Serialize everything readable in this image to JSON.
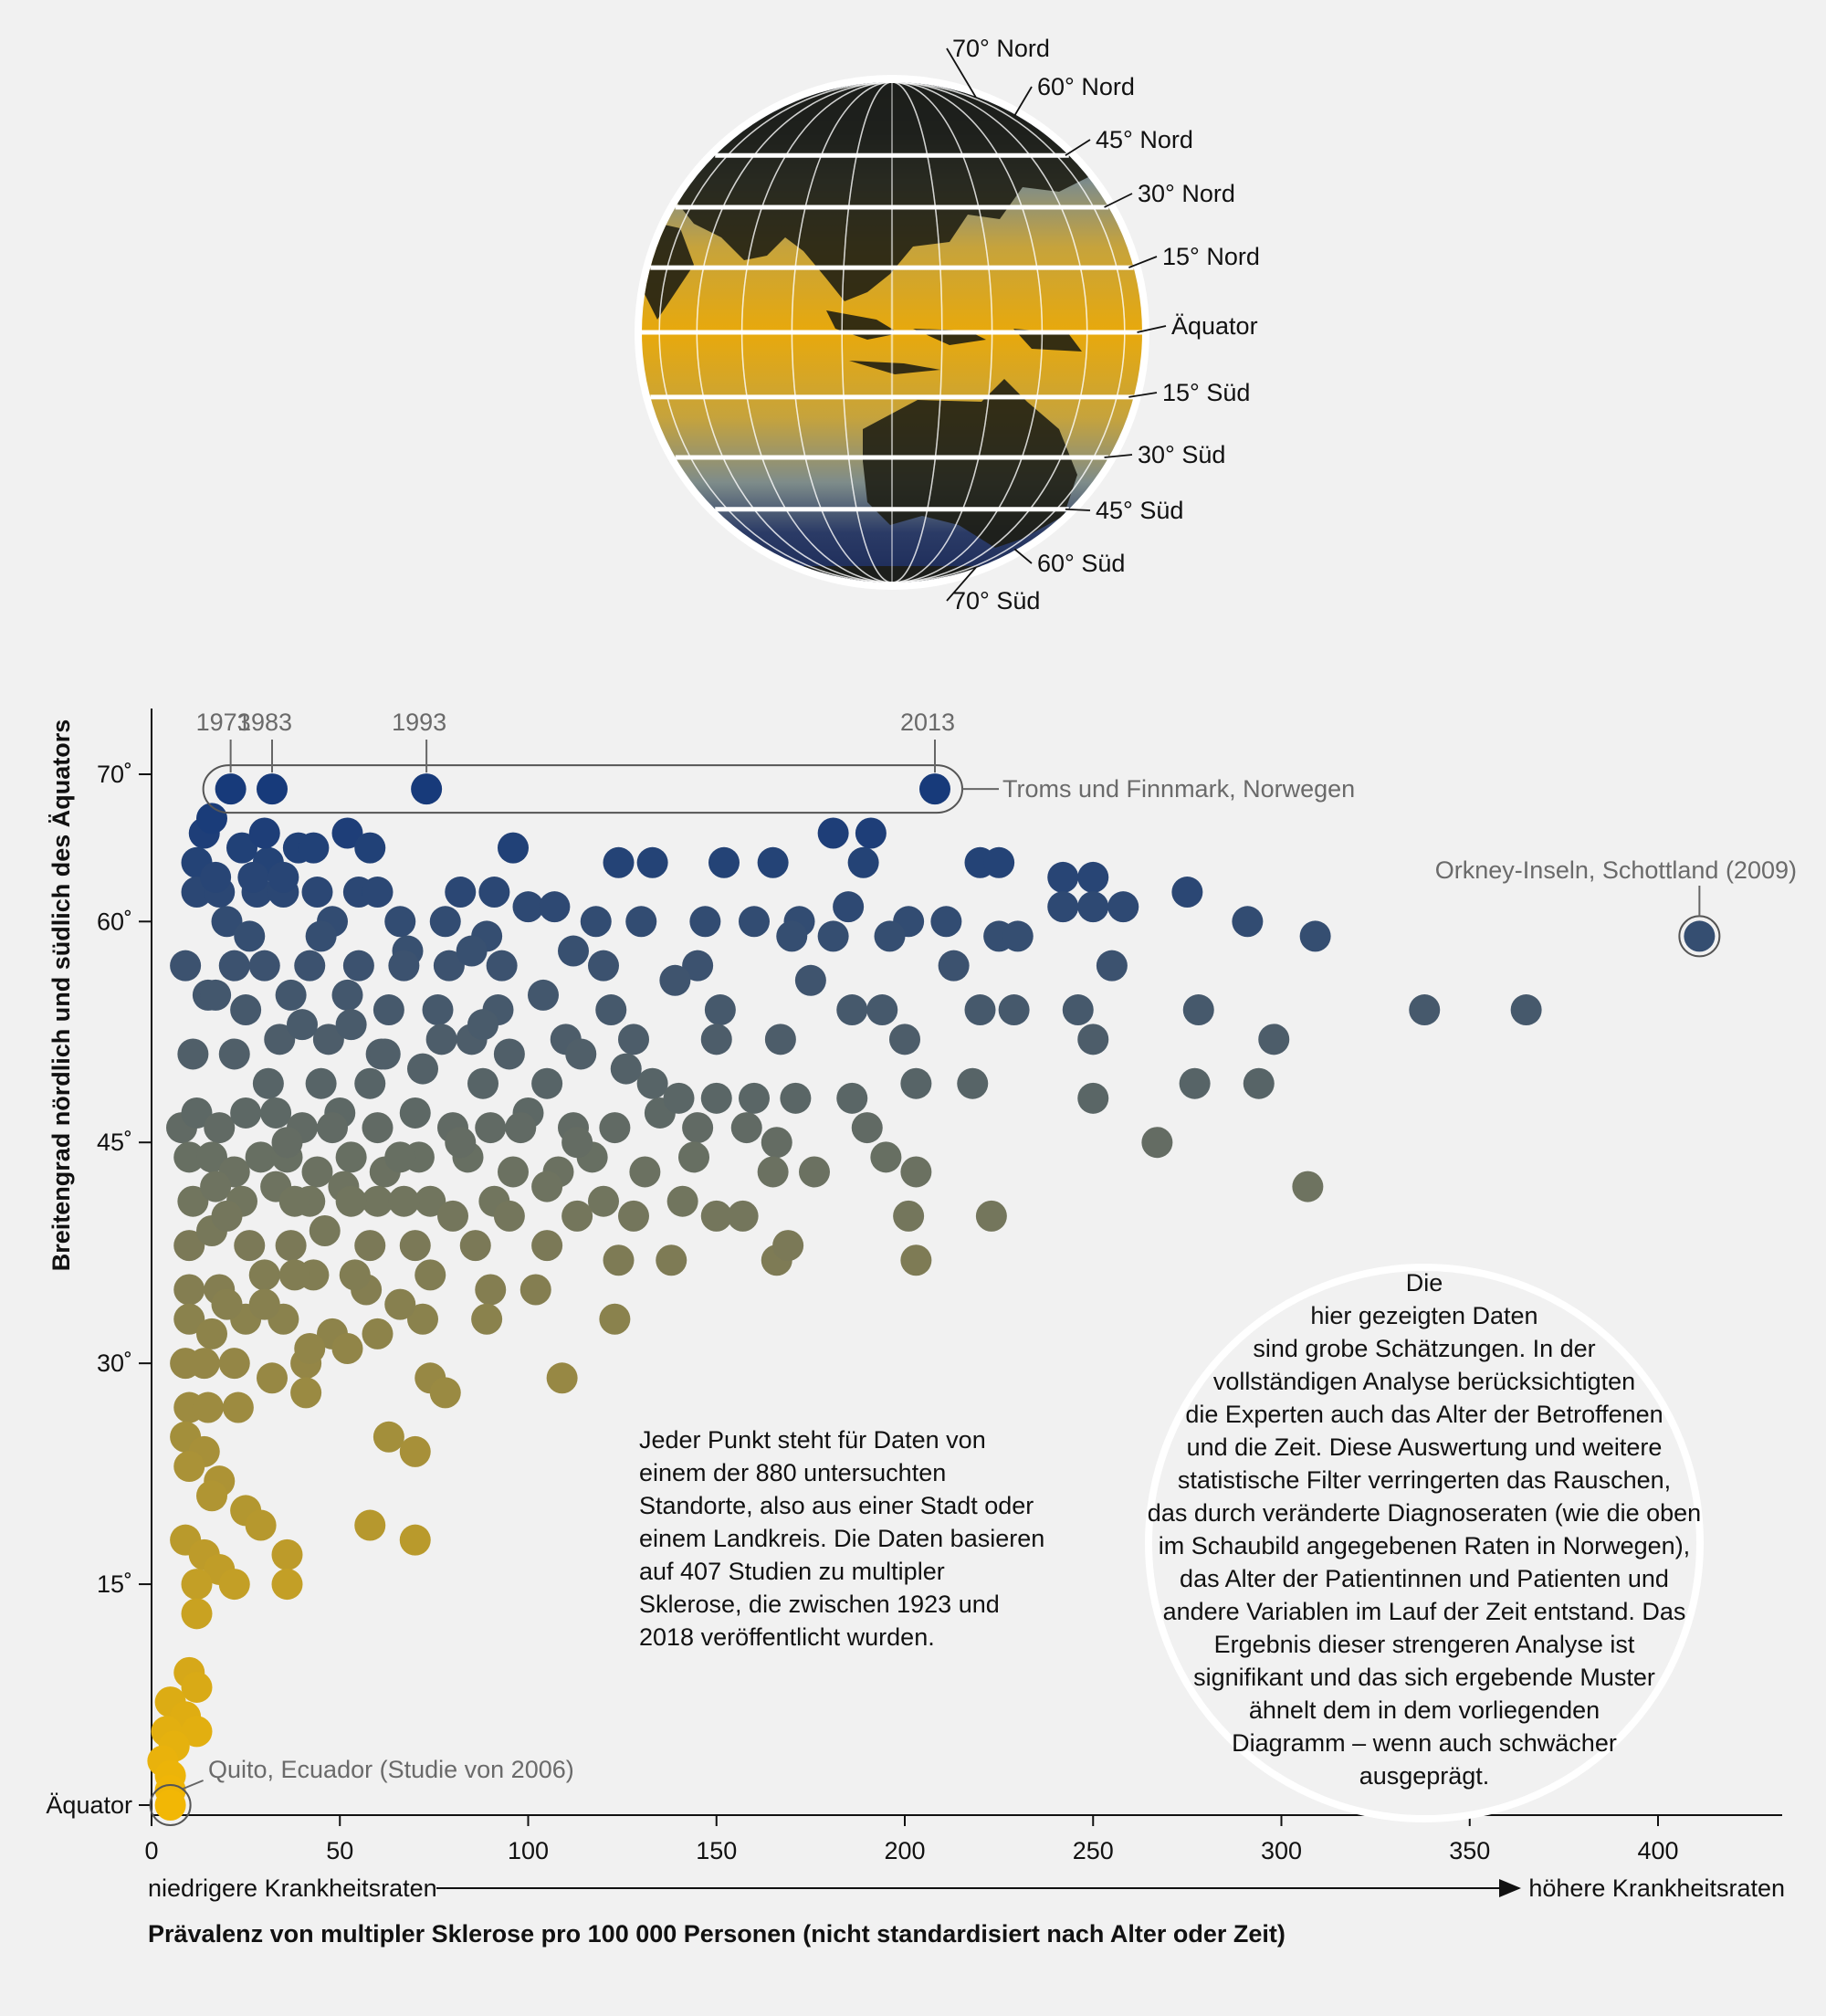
{
  "globe": {
    "labels": [
      "70° Nord",
      "60° Nord",
      "45° Nord",
      "30° Nord",
      "15° Nord",
      "Äquator",
      "15° Süd",
      "30° Süd",
      "45° Süd",
      "60° Süd",
      "70° Süd"
    ],
    "colors": {
      "pole": "#1f2d5c",
      "mid": "#7c8a86",
      "equator": "#e7a90f"
    }
  },
  "chart_data": {
    "type": "scatter",
    "title": "",
    "xlabel": "Prävalenz von multipler Sklerose pro 100 000 Personen (nicht standardisiert nach Alter oder Zeit)",
    "ylabel": "Breitengrad nördlich und südlich des Äquators",
    "x_ticks": [
      "0",
      "50",
      "100",
      "150",
      "200",
      "250",
      "300",
      "350",
      "400"
    ],
    "y_ticks": [
      "Äquator",
      "15˚",
      "30˚",
      "45˚",
      "60˚",
      "70˚"
    ],
    "xlim": [
      0,
      430
    ],
    "ylim": [
      0,
      73
    ],
    "x_arrow_left": "niedrigere Krankheitsraten",
    "x_arrow_right": "höhere Krankheitsraten",
    "color_scale": {
      "low_lat": "#f2b705",
      "mid_lat": "#6e7360",
      "high_lat": "#173a7a"
    },
    "highlight_years": [
      "1973",
      "1983",
      "1993",
      "2013"
    ],
    "annotations": {
      "troms": "Troms und Finnmark, Norwegen",
      "orkney": "Orkney-Inseln, Schottland (2009)",
      "quito": "Quito, Ecuador (Studie von 2006)"
    },
    "highlight_points": [
      {
        "x": 21,
        "y": 69,
        "label": "1973"
      },
      {
        "x": 32,
        "y": 69,
        "label": "1983"
      },
      {
        "x": 73,
        "y": 69,
        "label": "1993"
      },
      {
        "x": 208,
        "y": 69,
        "label": "2013"
      },
      {
        "x": 411,
        "y": 59,
        "label": "orkney"
      },
      {
        "x": 5,
        "y": 0,
        "label": "quito"
      }
    ],
    "points": [
      [
        14,
        66
      ],
      [
        16,
        67
      ],
      [
        12,
        64
      ],
      [
        24,
        65
      ],
      [
        31,
        64
      ],
      [
        39,
        65
      ],
      [
        43,
        65
      ],
      [
        52,
        66
      ],
      [
        58,
        65
      ],
      [
        96,
        65
      ],
      [
        124,
        64
      ],
      [
        133,
        64
      ],
      [
        152,
        64
      ],
      [
        165,
        64
      ],
      [
        181,
        66
      ],
      [
        191,
        66
      ],
      [
        189,
        64
      ],
      [
        220,
        64
      ],
      [
        225,
        64
      ],
      [
        242,
        63
      ],
      [
        250,
        63
      ],
      [
        275,
        62
      ],
      [
        12,
        62
      ],
      [
        18,
        62
      ],
      [
        28,
        62
      ],
      [
        35,
        62
      ],
      [
        55,
        62
      ],
      [
        60,
        62
      ],
      [
        82,
        62
      ],
      [
        91,
        62
      ],
      [
        100,
        61
      ],
      [
        107,
        61
      ],
      [
        160,
        60
      ],
      [
        172,
        60
      ],
      [
        185,
        61
      ],
      [
        201,
        60
      ],
      [
        211,
        60
      ],
      [
        225,
        59
      ],
      [
        230,
        59
      ],
      [
        242,
        61
      ],
      [
        250,
        61
      ],
      [
        258,
        61
      ],
      [
        291,
        60
      ],
      [
        309,
        59
      ],
      [
        20,
        60
      ],
      [
        26,
        59
      ],
      [
        48,
        60
      ],
      [
        66,
        60
      ],
      [
        78,
        60
      ],
      [
        89,
        59
      ],
      [
        118,
        60
      ],
      [
        130,
        60
      ],
      [
        147,
        60
      ],
      [
        170,
        59
      ],
      [
        196,
        59
      ],
      [
        9,
        57
      ],
      [
        15,
        55
      ],
      [
        22,
        57
      ],
      [
        30,
        57
      ],
      [
        42,
        57
      ],
      [
        55,
        57
      ],
      [
        68,
        58
      ],
      [
        79,
        57
      ],
      [
        93,
        57
      ],
      [
        120,
        57
      ],
      [
        145,
        57
      ],
      [
        213,
        57
      ],
      [
        255,
        57
      ],
      [
        17,
        55
      ],
      [
        25,
        54
      ],
      [
        37,
        55
      ],
      [
        52,
        55
      ],
      [
        63,
        54
      ],
      [
        76,
        54
      ],
      [
        92,
        54
      ],
      [
        122,
        54
      ],
      [
        151,
        54
      ],
      [
        186,
        54
      ],
      [
        194,
        54
      ],
      [
        220,
        54
      ],
      [
        229,
        54
      ],
      [
        246,
        54
      ],
      [
        278,
        54
      ],
      [
        338,
        54
      ],
      [
        365,
        54
      ],
      [
        11,
        51
      ],
      [
        22,
        51
      ],
      [
        34,
        52
      ],
      [
        47,
        52
      ],
      [
        61,
        51
      ],
      [
        85,
        52
      ],
      [
        110,
        52
      ],
      [
        128,
        52
      ],
      [
        150,
        52
      ],
      [
        167,
        52
      ],
      [
        200,
        52
      ],
      [
        250,
        52
      ],
      [
        298,
        52
      ],
      [
        31,
        49
      ],
      [
        45,
        49
      ],
      [
        58,
        49
      ],
      [
        72,
        50
      ],
      [
        88,
        49
      ],
      [
        105,
        49
      ],
      [
        133,
        49
      ],
      [
        150,
        48
      ],
      [
        160,
        48
      ],
      [
        171,
        48
      ],
      [
        186,
        48
      ],
      [
        203,
        49
      ],
      [
        218,
        49
      ],
      [
        250,
        48
      ],
      [
        277,
        49
      ],
      [
        294,
        49
      ],
      [
        8,
        46
      ],
      [
        12,
        47
      ],
      [
        18,
        46
      ],
      [
        25,
        47
      ],
      [
        33,
        47
      ],
      [
        40,
        46
      ],
      [
        50,
        47
      ],
      [
        60,
        46
      ],
      [
        70,
        47
      ],
      [
        80,
        46
      ],
      [
        90,
        46
      ],
      [
        100,
        47
      ],
      [
        112,
        46
      ],
      [
        123,
        46
      ],
      [
        135,
        47
      ],
      [
        145,
        46
      ],
      [
        166,
        45
      ],
      [
        190,
        46
      ],
      [
        267,
        45
      ],
      [
        10,
        44
      ],
      [
        16,
        44
      ],
      [
        22,
        43
      ],
      [
        29,
        44
      ],
      [
        36,
        44
      ],
      [
        44,
        43
      ],
      [
        53,
        44
      ],
      [
        62,
        43
      ],
      [
        71,
        44
      ],
      [
        84,
        44
      ],
      [
        96,
        43
      ],
      [
        108,
        43
      ],
      [
        117,
        44
      ],
      [
        131,
        43
      ],
      [
        144,
        44
      ],
      [
        165,
        43
      ],
      [
        176,
        43
      ],
      [
        195,
        44
      ],
      [
        203,
        43
      ],
      [
        11,
        41
      ],
      [
        17,
        42
      ],
      [
        24,
        41
      ],
      [
        33,
        42
      ],
      [
        42,
        41
      ],
      [
        51,
        42
      ],
      [
        60,
        41
      ],
      [
        74,
        41
      ],
      [
        91,
        41
      ],
      [
        105,
        42
      ],
      [
        120,
        41
      ],
      [
        141,
        41
      ],
      [
        150,
        40
      ],
      [
        157,
        40
      ],
      [
        201,
        40
      ],
      [
        223,
        40
      ],
      [
        307,
        42
      ],
      [
        10,
        38
      ],
      [
        16,
        39
      ],
      [
        26,
        38
      ],
      [
        37,
        38
      ],
      [
        46,
        39
      ],
      [
        58,
        38
      ],
      [
        70,
        38
      ],
      [
        86,
        38
      ],
      [
        105,
        38
      ],
      [
        124,
        37
      ],
      [
        138,
        37
      ],
      [
        166,
        37
      ],
      [
        169,
        38
      ],
      [
        203,
        37
      ],
      [
        10,
        35
      ],
      [
        18,
        35
      ],
      [
        30,
        36
      ],
      [
        43,
        36
      ],
      [
        57,
        35
      ],
      [
        74,
        36
      ],
      [
        90,
        35
      ],
      [
        102,
        35
      ],
      [
        10,
        33
      ],
      [
        16,
        32
      ],
      [
        25,
        33
      ],
      [
        35,
        33
      ],
      [
        48,
        32
      ],
      [
        60,
        32
      ],
      [
        72,
        33
      ],
      [
        89,
        33
      ],
      [
        123,
        33
      ],
      [
        9,
        30
      ],
      [
        14,
        30
      ],
      [
        22,
        30
      ],
      [
        32,
        29
      ],
      [
        41,
        30
      ],
      [
        74,
        29
      ],
      [
        78,
        28
      ],
      [
        109,
        29
      ],
      [
        10,
        27
      ],
      [
        15,
        27
      ],
      [
        23,
        27
      ],
      [
        41,
        28
      ],
      [
        9,
        25
      ],
      [
        14,
        24
      ],
      [
        18,
        22
      ],
      [
        63,
        25
      ],
      [
        70,
        24
      ],
      [
        10,
        23
      ],
      [
        16,
        21
      ],
      [
        25,
        20
      ],
      [
        29,
        19
      ],
      [
        58,
        19
      ],
      [
        70,
        18
      ],
      [
        9,
        18
      ],
      [
        14,
        17
      ],
      [
        18,
        16
      ],
      [
        22,
        15
      ],
      [
        36,
        17
      ],
      [
        12,
        15
      ],
      [
        36,
        15
      ],
      [
        12,
        13
      ],
      [
        10,
        9
      ],
      [
        12,
        8
      ],
      [
        5,
        7
      ],
      [
        9,
        6
      ],
      [
        12,
        5
      ],
      [
        4,
        5
      ],
      [
        6,
        4
      ],
      [
        3,
        3
      ],
      [
        5,
        2
      ],
      [
        5,
        1
      ],
      [
        36,
        45
      ],
      [
        48,
        46
      ],
      [
        66,
        44
      ],
      [
        82,
        45
      ],
      [
        98,
        46
      ],
      [
        113,
        45
      ],
      [
        62,
        51
      ],
      [
        77,
        52
      ],
      [
        95,
        51
      ],
      [
        67,
        57
      ],
      [
        104,
        55
      ],
      [
        114,
        51
      ],
      [
        140,
        48
      ],
      [
        158,
        46
      ],
      [
        44,
        62
      ],
      [
        30,
        66
      ],
      [
        17,
        63
      ],
      [
        27,
        63
      ],
      [
        35,
        63
      ],
      [
        45,
        59
      ],
      [
        85,
        58
      ],
      [
        112,
        58
      ],
      [
        139,
        56
      ],
      [
        175,
        56
      ],
      [
        181,
        59
      ],
      [
        40,
        53
      ],
      [
        53,
        53
      ],
      [
        88,
        53
      ],
      [
        126,
        50
      ],
      [
        53,
        41
      ],
      [
        67,
        41
      ],
      [
        80,
        40
      ],
      [
        95,
        40
      ],
      [
        113,
        40
      ],
      [
        128,
        40
      ],
      [
        38,
        36
      ],
      [
        54,
        36
      ],
      [
        66,
        34
      ],
      [
        42,
        31
      ],
      [
        52,
        31
      ],
      [
        20,
        34
      ],
      [
        30,
        34
      ],
      [
        20,
        40
      ],
      [
        38,
        41
      ]
    ]
  },
  "notes": {
    "left_lines": [
      "Jeder Punkt steht für Daten von",
      "einem der 880 untersuchten",
      "Standorte, also aus einer Stadt oder",
      "einem Landkreis. Die Daten basieren",
      "auf 407 Studien zu multipler",
      "Sklerose, die zwischen 1923 und",
      "2018 veröffentlicht wurden."
    ],
    "circle_lines": [
      "Die",
      "hier gezeigten Daten",
      "sind grobe Schätzungen. In der",
      "vollständigen Analyse berücksichtigten",
      "die Experten auch das Alter der Betroffenen",
      "und die Zeit. Diese Auswertung und weitere",
      "statistische Filter verringerten das Rauschen,",
      "das durch veränderte Diagnoseraten (wie die oben",
      "im Schaubild angegebenen Raten in Norwegen),",
      "das Alter der Patientinnen und Patienten und",
      "andere Variablen im Lauf der Zeit entstand. Das",
      "Ergebnis dieser strengeren Analyse ist",
      "signifikant und das sich ergebende Muster",
      "ähnelt dem in dem vorliegenden",
      "Diagramm – wenn auch schwächer",
      "ausgeprägt."
    ]
  }
}
